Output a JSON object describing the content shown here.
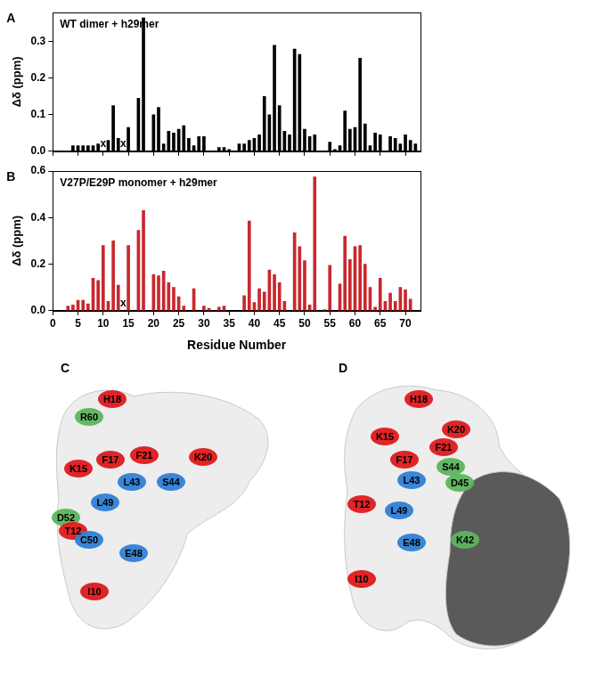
{
  "chart_data": [
    {
      "type": "bar",
      "panel_label": "A",
      "title": "WT dimer + h29mer",
      "y_label": "Δδ (ppm)",
      "x": [
        4,
        5,
        6,
        7,
        8,
        9,
        11,
        12,
        13,
        15,
        17,
        18,
        20,
        21,
        22,
        23,
        24,
        25,
        26,
        27,
        28,
        29,
        30,
        33,
        34,
        35,
        37,
        38,
        39,
        40,
        41,
        42,
        43,
        44,
        45,
        46,
        47,
        48,
        49,
        50,
        51,
        52,
        55,
        56,
        57,
        58,
        59,
        60,
        61,
        62,
        63,
        64,
        65,
        67,
        68,
        69,
        70,
        71,
        72
      ],
      "values": [
        0.015,
        0.015,
        0.015,
        0.015,
        0.015,
        0.02,
        0.03,
        0.125,
        0.035,
        0.065,
        0.145,
        0.365,
        0.1,
        0.12,
        0.02,
        0.055,
        0.05,
        0.06,
        0.07,
        0.035,
        0.015,
        0.04,
        0.04,
        0.01,
        0.01,
        0.005,
        0.02,
        0.02,
        0.03,
        0.035,
        0.045,
        0.15,
        0.1,
        0.29,
        0.125,
        0.055,
        0.045,
        0.28,
        0.265,
        0.06,
        0.04,
        0.045,
        0.025,
        0.005,
        0.015,
        0.11,
        0.06,
        0.065,
        0.255,
        0.075,
        0.015,
        0.05,
        0.045,
        0.04,
        0.035,
        0.02,
        0.045,
        0.03,
        0.02
      ],
      "color": "#000000",
      "xlim": [
        0,
        73
      ],
      "xticks": [
        0,
        5,
        10,
        15,
        20,
        25,
        30,
        35,
        40,
        45,
        50,
        55,
        60,
        65,
        70
      ],
      "ylim": [
        0,
        0.38
      ],
      "yticks": [
        {
          "value": 0,
          "label": "0.0"
        },
        0.1,
        0.2,
        0.3
      ],
      "grid": false,
      "tick_labels": "y",
      "annotations": [
        {
          "x": 10,
          "text": "x"
        },
        {
          "x": 14,
          "text": "x"
        }
      ]
    },
    {
      "type": "bar",
      "panel_label": "B",
      "title": "V27P/E29P monomer + h29mer",
      "y_label": "Δδ (ppm)",
      "x_label": "Residue Number",
      "x": [
        3,
        4,
        5,
        6,
        7,
        8,
        9,
        10,
        11,
        12,
        13,
        15,
        17,
        18,
        20,
        21,
        22,
        23,
        24,
        25,
        26,
        28,
        30,
        31,
        33,
        34,
        38,
        39,
        40,
        41,
        42,
        43,
        44,
        45,
        46,
        48,
        49,
        50,
        51,
        52,
        54,
        55,
        57,
        58,
        59,
        60,
        61,
        62,
        63,
        64,
        65,
        66,
        67,
        68,
        69,
        70,
        71
      ],
      "values": [
        0.02,
        0.025,
        0.045,
        0.045,
        0.03,
        0.14,
        0.13,
        0.28,
        0.04,
        0.3,
        0.11,
        0.28,
        0.345,
        0.43,
        0.155,
        0.15,
        0.17,
        0.12,
        0.1,
        0.06,
        0.02,
        0.095,
        0.02,
        0.01,
        0.015,
        0.02,
        0.065,
        0.385,
        0.035,
        0.095,
        0.08,
        0.175,
        0.155,
        0.12,
        0.04,
        0.335,
        0.275,
        0.215,
        0.025,
        0.575,
        0.005,
        0.195,
        0.115,
        0.32,
        0.22,
        0.275,
        0.28,
        0.2,
        0.1,
        0.015,
        0.14,
        0.04,
        0.075,
        0.04,
        0.1,
        0.09,
        0.05
      ],
      "color": "#c8282d",
      "xlim": [
        0,
        73
      ],
      "xticks": [
        0,
        5,
        10,
        15,
        20,
        25,
        30,
        35,
        40,
        45,
        50,
        55,
        60,
        65,
        70
      ],
      "ylim": [
        0,
        0.6
      ],
      "yticks": [
        {
          "value": 0,
          "label": "0.0"
        },
        0.2,
        0.4,
        0.6
      ],
      "grid": false,
      "annotations": [
        {
          "x": 14,
          "text": "x"
        }
      ]
    }
  ],
  "surface_panels": [
    {
      "panel_label": "C",
      "labels": [
        {
          "text": "H18",
          "color": "#e0191b"
        },
        {
          "text": "R60",
          "color": "#5db55d"
        },
        {
          "text": "K15",
          "color": "#e0191b"
        },
        {
          "text": "F17",
          "color": "#e0191b"
        },
        {
          "text": "F21",
          "color": "#e0191b"
        },
        {
          "text": "K20",
          "color": "#e0191b"
        },
        {
          "text": "L43",
          "color": "#2f7fd6"
        },
        {
          "text": "S44",
          "color": "#2f7fd6"
        },
        {
          "text": "L49",
          "color": "#2f7fd6"
        },
        {
          "text": "D52",
          "color": "#5db55d"
        },
        {
          "text": "T12",
          "color": "#e0191b"
        },
        {
          "text": "C50",
          "color": "#2f7fd6"
        },
        {
          "text": "E48",
          "color": "#2f7fd6"
        },
        {
          "text": "I10",
          "color": "#e0191b"
        }
      ]
    },
    {
      "panel_label": "D",
      "labels": [
        {
          "text": "H18",
          "color": "#e0191b"
        },
        {
          "text": "K20",
          "color": "#e0191b"
        },
        {
          "text": "K15",
          "color": "#e0191b"
        },
        {
          "text": "F21",
          "color": "#e0191b"
        },
        {
          "text": "F17",
          "color": "#e0191b"
        },
        {
          "text": "L43",
          "color": "#2f7fd6"
        },
        {
          "text": "S44",
          "color": "#5db55d"
        },
        {
          "text": "D45",
          "color": "#5db55d"
        },
        {
          "text": "T12",
          "color": "#e0191b"
        },
        {
          "text": "L49",
          "color": "#2f7fd6"
        },
        {
          "text": "E48",
          "color": "#2f7fd6"
        },
        {
          "text": "K42",
          "color": "#5db55d"
        },
        {
          "text": "I10",
          "color": "#e0191b"
        }
      ]
    }
  ]
}
